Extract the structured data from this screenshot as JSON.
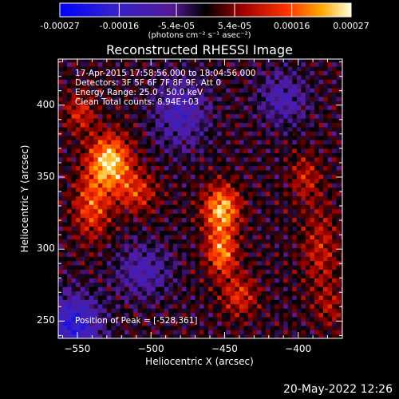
{
  "chart_data": {
    "type": "heatmap",
    "title": "Reconstructed RHESSI Image",
    "xlabel": "Heliocentric X (arcsec)",
    "ylabel": "Heliocentric Y (arcsec)",
    "xlim": [
      -563,
      -370
    ],
    "ylim": [
      238,
      432
    ],
    "x_ticks": [
      -550,
      -500,
      -450,
      -400
    ],
    "y_ticks": [
      250,
      300,
      350,
      400
    ],
    "colorbar": {
      "label": "(photons cm⁻² s⁻¹ asec⁻²)",
      "range": [
        -0.00027,
        0.00027
      ],
      "tick_labels": [
        "-0.00027",
        "-0.00016",
        "-5.4e-05",
        "5.4e-05",
        "0.00016",
        "0.00027"
      ],
      "tick_values": [
        -0.00027,
        -0.00016,
        -5.4e-05,
        5.4e-05,
        0.00016,
        0.00027
      ]
    },
    "annotations": [
      "17-Apr-2015 17:58:56.000 to 18:04:56.000",
      "Detectors: 3F 5F 6F 7F 8F 9F, Att 0",
      "Energy Range: 25.0 - 50.0 keV",
      "Clean     Total counts: 8.94E+03"
    ],
    "peak_label": "Position of Peak = [-528,361]",
    "sources": [
      {
        "x": -528,
        "y": 361
      },
      {
        "x": -452,
        "y": 328
      },
      {
        "x": -452,
        "y": 298
      }
    ]
  },
  "timestamp": "20-May-2022 12:26"
}
